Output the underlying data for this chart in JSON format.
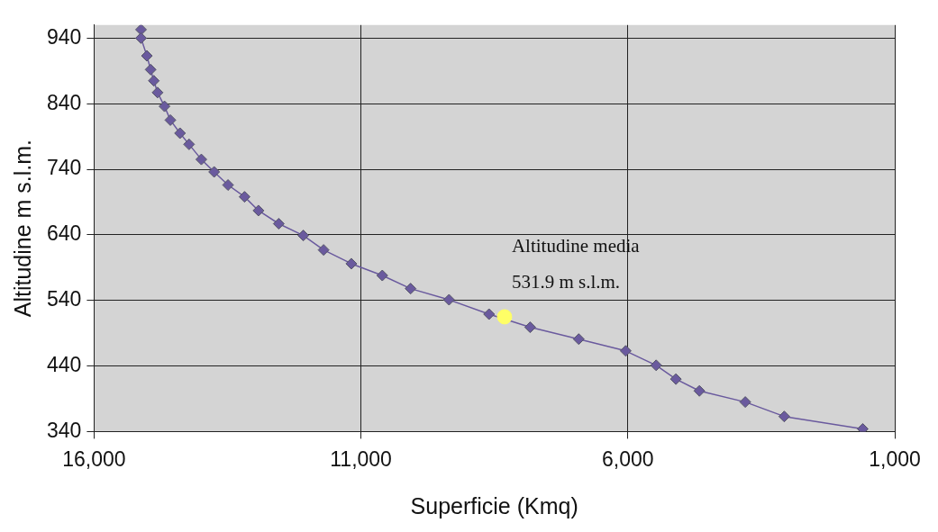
{
  "chart_data": {
    "type": "line",
    "xlabel": "Superficie (Kmq)",
    "ylabel": "Altitudine m s.l.m.",
    "xlim": [
      16000,
      1000
    ],
    "xticks": [
      {
        "value": 16000,
        "label": "16,000"
      },
      {
        "value": 11000,
        "label": "11,000"
      },
      {
        "value": 6000,
        "label": "6,000"
      },
      {
        "value": 1000,
        "label": "1,000"
      }
    ],
    "ylim": [
      340,
      960
    ],
    "yticks": [
      340,
      440,
      540,
      640,
      740,
      840,
      940
    ],
    "grid": true,
    "marker": "diamond",
    "line_style": "solid",
    "series": [
      {
        "color": "#6a5a9e",
        "x": [
          15120,
          15120,
          15010,
          14940,
          14880,
          14810,
          14680,
          14570,
          14390,
          14220,
          13990,
          13750,
          13490,
          13180,
          12920,
          12540,
          12080,
          11700,
          11180,
          10600,
          10070,
          9350,
          8600,
          7830,
          6920,
          6040,
          5470,
          5100,
          4660,
          3800,
          3070,
          1600
        ],
        "values": [
          953,
          940,
          913,
          892,
          875,
          857,
          836,
          815,
          795,
          778,
          755,
          736,
          716,
          698,
          677,
          657,
          639,
          617,
          596,
          578,
          558,
          541,
          519,
          499,
          481,
          463,
          441,
          420,
          402,
          385,
          363,
          344
        ]
      },
      {
        "type": "scatter",
        "marker": "circle",
        "color": "#ffff66",
        "x": [
          8310
        ],
        "values": [
          515
        ]
      }
    ],
    "annotations": [
      {
        "text": "Altitudine media\n531.9 m s.l.m.",
        "x": 8310,
        "y": 515
      }
    ]
  }
}
